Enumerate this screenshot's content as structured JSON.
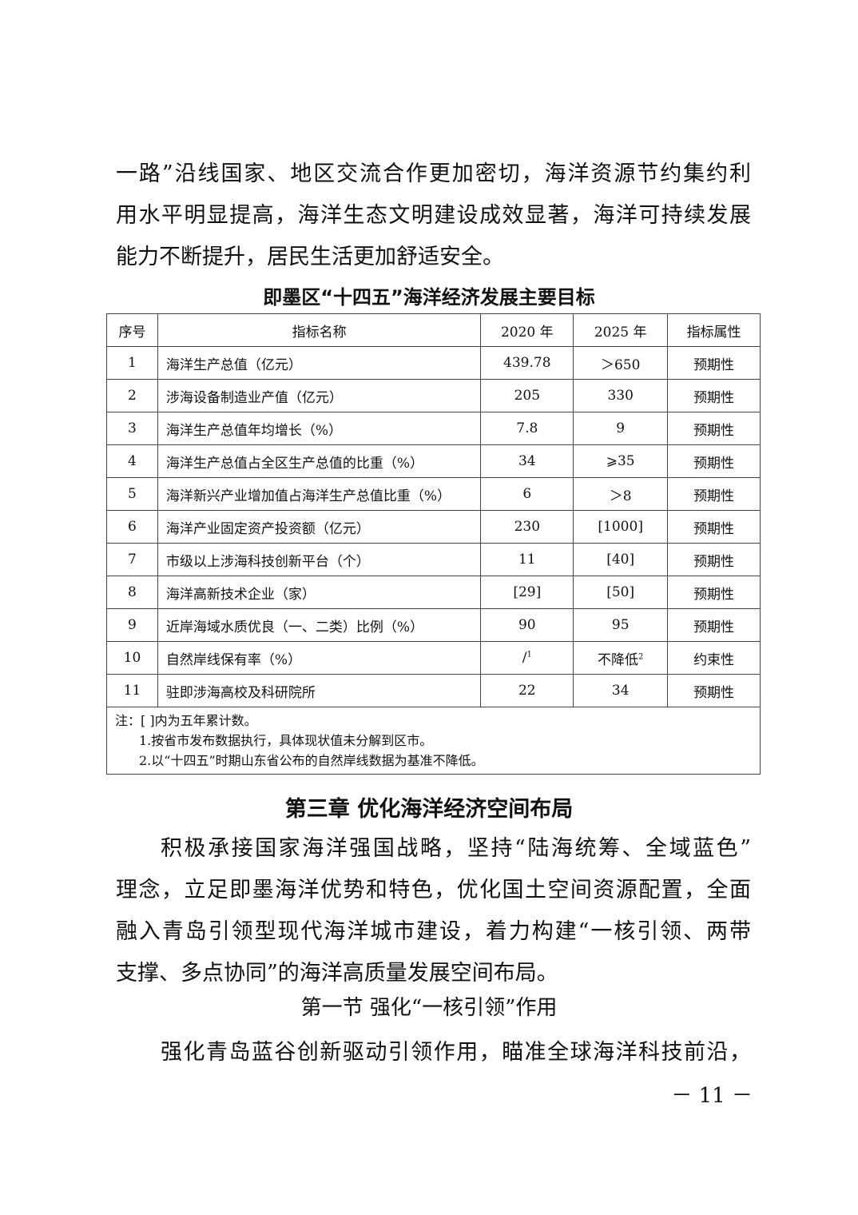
{
  "intro_lines": [
    "一路”沿线国家、地区交流合作更加密切，海洋资源节约集约利",
    "用水平明显提高，海洋生态文明建设成效显著，海洋可持续发展",
    "能力不断提升，居民生活更加舒适安全。"
  ],
  "table": {
    "title": "即墨区“十四五”海洋经济发展主要目标",
    "headers": [
      "序号",
      "指标名称",
      "2020 年",
      "2025 年",
      "指标属性"
    ],
    "rows": [
      {
        "no": "1",
        "name": "海洋生产总值（亿元）",
        "y2020": "439.78",
        "y2025": "＞650",
        "attr": "预期性"
      },
      {
        "no": "2",
        "name": "涉海设备制造业产值（亿元）",
        "y2020": "205",
        "y2025": "330",
        "attr": "预期性"
      },
      {
        "no": "3",
        "name": "海洋生产总值年均增长（%）",
        "y2020": "7.8",
        "y2025": "9",
        "attr": "预期性"
      },
      {
        "no": "4",
        "name": "海洋生产总值占全区生产总值的比重（%）",
        "y2020": "34",
        "y2025": "⩾35",
        "attr": "预期性"
      },
      {
        "no": "5",
        "name": "海洋新兴产业增加值占海洋生产总值比重（%）",
        "y2020": "6",
        "y2025": "＞8",
        "attr": "预期性"
      },
      {
        "no": "6",
        "name": "海洋产业固定资产投资额（亿元）",
        "y2020": "230",
        "y2025": "[1000]",
        "attr": "预期性"
      },
      {
        "no": "7",
        "name": "市级以上涉海科技创新平台（个）",
        "y2020": "11",
        "y2025": "[40]",
        "attr": "预期性"
      },
      {
        "no": "8",
        "name": "海洋高新技术企业（家）",
        "y2020": "[29]",
        "y2025": "[50]",
        "attr": "预期性"
      },
      {
        "no": "9",
        "name": "近岸海域水质优良（一、二类）比例（%）",
        "y2020": "90",
        "y2025": "95",
        "attr": "预期性"
      },
      {
        "no": "10",
        "name": "自然岸线保有率（%）",
        "y2020": "/",
        "y2020_sup": "1",
        "y2025": "不降低",
        "y2025_sup": "2",
        "attr": "约束性"
      },
      {
        "no": "11",
        "name": "驻即涉海高校及科研院所",
        "y2020": "22",
        "y2025": "34",
        "attr": "预期性"
      }
    ],
    "notes": [
      "注：[ ]内为五年累计数。",
      "1.按省市发布数据执行，具体现状值未分解到区市。",
      "2.以“十四五”时期山东省公布的自然岸线数据为基准不降低。"
    ]
  },
  "chapter_title": "第三章  优化海洋经济空间布局",
  "chapter_lines": [
    "积极承接国家海洋强国战略，坚持“陆海统筹、全域蓝色”",
    "理念，立足即墨海洋优势和特色，优化国土空间资源配置，全面",
    "融入青岛引领型现代海洋城市建设，着力构建“一核引领、两带",
    "支撑、多点协同”的海洋高质量发展空间布局。"
  ],
  "section_title": "第一节  强化“一核引领”作用",
  "section_lines": [
    "强化青岛蓝谷创新驱动引领作用，瞄准全球海洋科技前沿，"
  ],
  "page_number": "－ 11 －"
}
